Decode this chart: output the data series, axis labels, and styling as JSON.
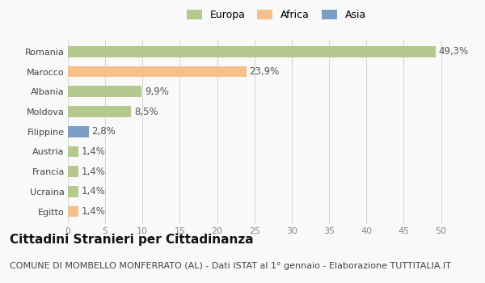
{
  "categories": [
    "Romania",
    "Marocco",
    "Albania",
    "Moldova",
    "Filippine",
    "Austria",
    "Francia",
    "Ucraina",
    "Egitto"
  ],
  "values": [
    49.3,
    23.9,
    9.9,
    8.5,
    2.8,
    1.4,
    1.4,
    1.4,
    1.4
  ],
  "labels": [
    "49,3%",
    "23,9%",
    "9,9%",
    "8,5%",
    "2,8%",
    "1,4%",
    "1,4%",
    "1,4%",
    "1,4%"
  ],
  "bar_colors": [
    "#b5c98e",
    "#f5c08a",
    "#b5c98e",
    "#b5c98e",
    "#7b9fc4",
    "#b5c98e",
    "#b5c98e",
    "#b5c98e",
    "#f5c08a"
  ],
  "legend_labels": [
    "Europa",
    "Africa",
    "Asia"
  ],
  "legend_colors": [
    "#b5c98e",
    "#f5c08a",
    "#7b9fc4"
  ],
  "xlim": [
    0,
    52
  ],
  "xticks": [
    0,
    5,
    10,
    15,
    20,
    25,
    30,
    35,
    40,
    45,
    50
  ],
  "title": "Cittadini Stranieri per Cittadinanza",
  "subtitle": "COMUNE DI MOMBELLO MONFERRATO (AL) - Dati ISTAT al 1° gennaio - Elaborazione TUTTITALIA.IT",
  "background_color": "#f9f9f9",
  "grid_color": "#d8d8d8",
  "bar_height": 0.55,
  "label_fontsize": 8.5,
  "tick_fontsize": 8,
  "title_fontsize": 11,
  "subtitle_fontsize": 8
}
